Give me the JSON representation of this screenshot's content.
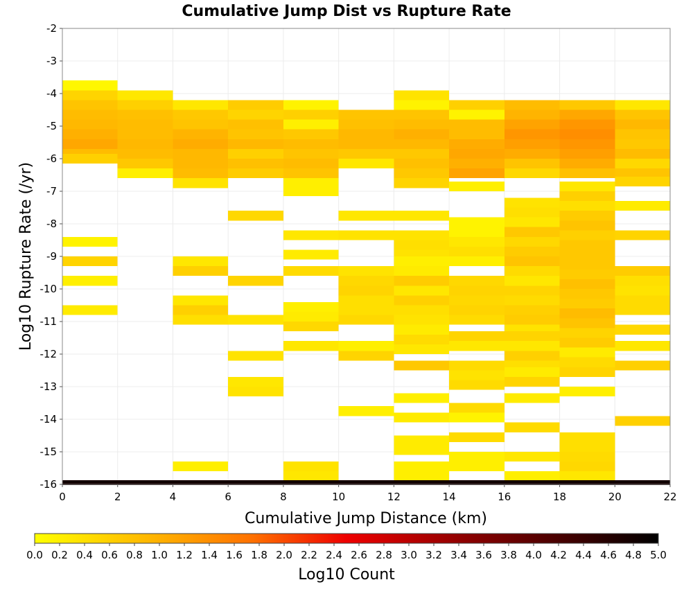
{
  "chart_data": {
    "type": "heatmap",
    "title": "Cumulative Jump Dist vs Rupture Rate",
    "xlabel": "Cumulative Jump Distance (km)",
    "ylabel": "Log10 Rupture Rate (/yr)",
    "xlim": [
      0,
      22
    ],
    "ylim": [
      -16,
      -2
    ],
    "x_ticks": [
      "0",
      "2",
      "4",
      "6",
      "8",
      "10",
      "12",
      "14",
      "16",
      "18",
      "20",
      "22"
    ],
    "y_ticks": [
      "-2",
      "-3",
      "-4",
      "-5",
      "-6",
      "-7",
      "-8",
      "-9",
      "-10",
      "-11",
      "-12",
      "-13",
      "-14",
      "-15",
      "-16"
    ],
    "x_bin_width": 2,
    "y_bin_height": 0.3,
    "grid": true,
    "colorbar": {
      "label": "Log10 Count",
      "min": 0.0,
      "max": 5.0,
      "ticks": [
        "0.0",
        "0.2",
        "0.4",
        "0.6",
        "0.8",
        "1.0",
        "1.2",
        "1.4",
        "1.6",
        "1.8",
        "2.0",
        "2.2",
        "2.4",
        "2.6",
        "2.8",
        "3.0",
        "3.2",
        "3.4",
        "3.6",
        "3.8",
        "4.0",
        "4.2",
        "4.4",
        "4.6",
        "4.8",
        "5.0"
      ],
      "colors": [
        "#ffff00",
        "#ff8000",
        "#ff0000",
        "#800000",
        "#000000"
      ]
    },
    "cells": [
      {
        "x": 0,
        "y": -3.75,
        "v": 0.1
      },
      {
        "x": 0,
        "y": -4.05,
        "v": 0.55
      },
      {
        "x": 0,
        "y": -4.35,
        "v": 0.75
      },
      {
        "x": 0,
        "y": -4.65,
        "v": 0.85
      },
      {
        "x": 0,
        "y": -4.95,
        "v": 0.9
      },
      {
        "x": 0,
        "y": -5.25,
        "v": 1.0
      },
      {
        "x": 0,
        "y": -5.55,
        "v": 1.1
      },
      {
        "x": 0,
        "y": -5.85,
        "v": 0.85
      },
      {
        "x": 0,
        "y": -6.0,
        "v": 0.6
      },
      {
        "x": 0,
        "y": -8.55,
        "v": 0.15
      },
      {
        "x": 0,
        "y": -9.15,
        "v": 0.55
      },
      {
        "x": 0,
        "y": -9.75,
        "v": 0.2
      },
      {
        "x": 0,
        "y": -10.65,
        "v": 0.25
      },
      {
        "x": 2,
        "y": -4.05,
        "v": 0.3
      },
      {
        "x": 2,
        "y": -4.35,
        "v": 0.6
      },
      {
        "x": 2,
        "y": -4.65,
        "v": 0.8
      },
      {
        "x": 2,
        "y": -4.95,
        "v": 0.85
      },
      {
        "x": 2,
        "y": -5.25,
        "v": 0.85
      },
      {
        "x": 2,
        "y": -5.55,
        "v": 0.9
      },
      {
        "x": 2,
        "y": -5.85,
        "v": 0.85
      },
      {
        "x": 2,
        "y": -6.15,
        "v": 0.7
      },
      {
        "x": 2,
        "y": -6.45,
        "v": 0.2
      },
      {
        "x": 4,
        "y": -4.35,
        "v": 0.3
      },
      {
        "x": 4,
        "y": -4.65,
        "v": 0.7
      },
      {
        "x": 4,
        "y": -4.95,
        "v": 0.75
      },
      {
        "x": 4,
        "y": -5.25,
        "v": 0.95
      },
      {
        "x": 4,
        "y": -5.55,
        "v": 1.05
      },
      {
        "x": 4,
        "y": -5.85,
        "v": 0.9
      },
      {
        "x": 4,
        "y": -6.15,
        "v": 0.9
      },
      {
        "x": 4,
        "y": -6.45,
        "v": 0.85
      },
      {
        "x": 4,
        "y": -6.75,
        "v": 0.35
      },
      {
        "x": 4,
        "y": -9.15,
        "v": 0.3
      },
      {
        "x": 4,
        "y": -9.45,
        "v": 0.6
      },
      {
        "x": 4,
        "y": -10.35,
        "v": 0.3
      },
      {
        "x": 4,
        "y": -10.65,
        "v": 0.6
      },
      {
        "x": 4,
        "y": -10.95,
        "v": 0.4
      },
      {
        "x": 4,
        "y": -15.45,
        "v": 0.2
      },
      {
        "x": 6,
        "y": -4.35,
        "v": 0.65
      },
      {
        "x": 6,
        "y": -4.65,
        "v": 0.55
      },
      {
        "x": 6,
        "y": -4.95,
        "v": 0.8
      },
      {
        "x": 6,
        "y": -5.25,
        "v": 0.75
      },
      {
        "x": 6,
        "y": -5.55,
        "v": 0.9
      },
      {
        "x": 6,
        "y": -5.85,
        "v": 0.6
      },
      {
        "x": 6,
        "y": -6.15,
        "v": 0.8
      },
      {
        "x": 6,
        "y": -6.45,
        "v": 0.65
      },
      {
        "x": 6,
        "y": -7.75,
        "v": 0.5
      },
      {
        "x": 6,
        "y": -9.75,
        "v": 0.55
      },
      {
        "x": 6,
        "y": -10.95,
        "v": 0.35
      },
      {
        "x": 6,
        "y": -12.05,
        "v": 0.35
      },
      {
        "x": 6,
        "y": -12.85,
        "v": 0.3
      },
      {
        "x": 6,
        "y": -13.15,
        "v": 0.35
      },
      {
        "x": 8,
        "y": -4.35,
        "v": 0.15
      },
      {
        "x": 8,
        "y": -4.65,
        "v": 0.6
      },
      {
        "x": 8,
        "y": -4.95,
        "v": 0.2
      },
      {
        "x": 8,
        "y": -5.25,
        "v": 0.7
      },
      {
        "x": 8,
        "y": -5.55,
        "v": 0.85
      },
      {
        "x": 8,
        "y": -5.85,
        "v": 0.75
      },
      {
        "x": 8,
        "y": -6.15,
        "v": 0.85
      },
      {
        "x": 8,
        "y": -6.45,
        "v": 0.75
      },
      {
        "x": 8,
        "y": -6.75,
        "v": 0.2
      },
      {
        "x": 8,
        "y": -7.0,
        "v": 0.2
      },
      {
        "x": 8,
        "y": -8.35,
        "v": 0.3
      },
      {
        "x": 8,
        "y": -8.95,
        "v": 0.25
      },
      {
        "x": 8,
        "y": -9.45,
        "v": 0.45
      },
      {
        "x": 8,
        "y": -10.55,
        "v": 0.2
      },
      {
        "x": 8,
        "y": -10.85,
        "v": 0.25
      },
      {
        "x": 8,
        "y": -11.15,
        "v": 0.5
      },
      {
        "x": 8,
        "y": -11.75,
        "v": 0.3
      },
      {
        "x": 8,
        "y": -15.45,
        "v": 0.35
      },
      {
        "x": 8,
        "y": -15.75,
        "v": 0.3
      },
      {
        "x": 10,
        "y": -4.65,
        "v": 0.75
      },
      {
        "x": 10,
        "y": -4.95,
        "v": 0.8
      },
      {
        "x": 10,
        "y": -5.25,
        "v": 0.9
      },
      {
        "x": 10,
        "y": -5.55,
        "v": 0.9
      },
      {
        "x": 10,
        "y": -5.85,
        "v": 0.7
      },
      {
        "x": 10,
        "y": -6.15,
        "v": 0.3
      },
      {
        "x": 10,
        "y": -7.75,
        "v": 0.3
      },
      {
        "x": 10,
        "y": -8.35,
        "v": 0.35
      },
      {
        "x": 10,
        "y": -9.45,
        "v": 0.35
      },
      {
        "x": 10,
        "y": -9.75,
        "v": 0.5
      },
      {
        "x": 10,
        "y": -10.05,
        "v": 0.55
      },
      {
        "x": 10,
        "y": -10.35,
        "v": 0.4
      },
      {
        "x": 10,
        "y": -10.65,
        "v": 0.4
      },
      {
        "x": 10,
        "y": -10.95,
        "v": 0.5
      },
      {
        "x": 10,
        "y": -11.75,
        "v": 0.2
      },
      {
        "x": 10,
        "y": -12.05,
        "v": 0.55
      },
      {
        "x": 10,
        "y": -13.75,
        "v": 0.2
      },
      {
        "x": 12,
        "y": -4.05,
        "v": 0.35
      },
      {
        "x": 12,
        "y": -4.35,
        "v": 0.15
      },
      {
        "x": 12,
        "y": -4.65,
        "v": 0.75
      },
      {
        "x": 12,
        "y": -4.95,
        "v": 0.85
      },
      {
        "x": 12,
        "y": -5.25,
        "v": 1.0
      },
      {
        "x": 12,
        "y": -5.55,
        "v": 0.9
      },
      {
        "x": 12,
        "y": -5.85,
        "v": 0.7
      },
      {
        "x": 12,
        "y": -6.15,
        "v": 0.8
      },
      {
        "x": 12,
        "y": -6.45,
        "v": 0.7
      },
      {
        "x": 12,
        "y": -6.75,
        "v": 0.55
      },
      {
        "x": 12,
        "y": -7.75,
        "v": 0.3
      },
      {
        "x": 12,
        "y": -8.35,
        "v": 0.35
      },
      {
        "x": 12,
        "y": -8.65,
        "v": 0.4
      },
      {
        "x": 12,
        "y": -8.95,
        "v": 0.35
      },
      {
        "x": 12,
        "y": -9.15,
        "v": 0.2
      },
      {
        "x": 12,
        "y": -9.45,
        "v": 0.25
      },
      {
        "x": 12,
        "y": -9.75,
        "v": 0.65
      },
      {
        "x": 12,
        "y": -10.05,
        "v": 0.3
      },
      {
        "x": 12,
        "y": -10.35,
        "v": 0.6
      },
      {
        "x": 12,
        "y": -10.65,
        "v": 0.4
      },
      {
        "x": 12,
        "y": -10.95,
        "v": 0.35
      },
      {
        "x": 12,
        "y": -11.25,
        "v": 0.25
      },
      {
        "x": 12,
        "y": -11.55,
        "v": 0.45
      },
      {
        "x": 12,
        "y": -11.85,
        "v": 0.3
      },
      {
        "x": 12,
        "y": -12.35,
        "v": 0.7
      },
      {
        "x": 12,
        "y": -13.35,
        "v": 0.2
      },
      {
        "x": 12,
        "y": -13.95,
        "v": 0.25
      },
      {
        "x": 12,
        "y": -14.65,
        "v": 0.25
      },
      {
        "x": 12,
        "y": -14.95,
        "v": 0.25
      },
      {
        "x": 12,
        "y": -15.45,
        "v": 0.2
      },
      {
        "x": 12,
        "y": -15.75,
        "v": 0.2
      },
      {
        "x": 14,
        "y": -4.35,
        "v": 0.6
      },
      {
        "x": 14,
        "y": -4.65,
        "v": 0.15
      },
      {
        "x": 14,
        "y": -4.95,
        "v": 0.85
      },
      {
        "x": 14,
        "y": -5.25,
        "v": 0.85
      },
      {
        "x": 14,
        "y": -5.55,
        "v": 1.05
      },
      {
        "x": 14,
        "y": -5.85,
        "v": 1.1
      },
      {
        "x": 14,
        "y": -6.15,
        "v": 1.0
      },
      {
        "x": 14,
        "y": -6.45,
        "v": 1.15
      },
      {
        "x": 14,
        "y": -6.85,
        "v": 0.2
      },
      {
        "x": 14,
        "y": -7.95,
        "v": 0.15
      },
      {
        "x": 14,
        "y": -8.25,
        "v": 0.15
      },
      {
        "x": 14,
        "y": -8.55,
        "v": 0.3
      },
      {
        "x": 14,
        "y": -8.85,
        "v": 0.4
      },
      {
        "x": 14,
        "y": -9.15,
        "v": 0.2
      },
      {
        "x": 14,
        "y": -9.75,
        "v": 0.5
      },
      {
        "x": 14,
        "y": -10.05,
        "v": 0.55
      },
      {
        "x": 14,
        "y": -10.35,
        "v": 0.5
      },
      {
        "x": 14,
        "y": -10.65,
        "v": 0.55
      },
      {
        "x": 14,
        "y": -10.95,
        "v": 0.45
      },
      {
        "x": 14,
        "y": -11.45,
        "v": 0.55
      },
      {
        "x": 14,
        "y": -11.75,
        "v": 0.3
      },
      {
        "x": 14,
        "y": -12.35,
        "v": 0.45
      },
      {
        "x": 14,
        "y": -12.65,
        "v": 0.35
      },
      {
        "x": 14,
        "y": -12.95,
        "v": 0.45
      },
      {
        "x": 14,
        "y": -13.65,
        "v": 0.45
      },
      {
        "x": 14,
        "y": -13.95,
        "v": 0.15
      },
      {
        "x": 14,
        "y": -14.55,
        "v": 0.45
      },
      {
        "x": 14,
        "y": -15.15,
        "v": 0.2
      },
      {
        "x": 14,
        "y": -15.45,
        "v": 0.2
      },
      {
        "x": 16,
        "y": -4.35,
        "v": 0.85
      },
      {
        "x": 16,
        "y": -4.65,
        "v": 0.95
      },
      {
        "x": 16,
        "y": -4.95,
        "v": 1.15
      },
      {
        "x": 16,
        "y": -5.25,
        "v": 1.3
      },
      {
        "x": 16,
        "y": -5.55,
        "v": 1.2
      },
      {
        "x": 16,
        "y": -5.85,
        "v": 1.05
      },
      {
        "x": 16,
        "y": -6.15,
        "v": 0.75
      },
      {
        "x": 16,
        "y": -6.45,
        "v": 0.5
      },
      {
        "x": 16,
        "y": -7.35,
        "v": 0.35
      },
      {
        "x": 16,
        "y": -7.65,
        "v": 0.4
      },
      {
        "x": 16,
        "y": -7.95,
        "v": 0.3
      },
      {
        "x": 16,
        "y": -8.25,
        "v": 0.7
      },
      {
        "x": 16,
        "y": -8.55,
        "v": 0.5
      },
      {
        "x": 16,
        "y": -8.85,
        "v": 0.65
      },
      {
        "x": 16,
        "y": -9.15,
        "v": 0.75
      },
      {
        "x": 16,
        "y": -9.45,
        "v": 0.45
      },
      {
        "x": 16,
        "y": -9.75,
        "v": 0.3
      },
      {
        "x": 16,
        "y": -10.05,
        "v": 0.55
      },
      {
        "x": 16,
        "y": -10.35,
        "v": 0.45
      },
      {
        "x": 16,
        "y": -10.65,
        "v": 0.6
      },
      {
        "x": 16,
        "y": -10.95,
        "v": 0.65
      },
      {
        "x": 16,
        "y": -11.25,
        "v": 0.35
      },
      {
        "x": 16,
        "y": -11.45,
        "v": 0.55
      },
      {
        "x": 16,
        "y": -11.75,
        "v": 0.3
      },
      {
        "x": 16,
        "y": -12.05,
        "v": 0.6
      },
      {
        "x": 16,
        "y": -12.35,
        "v": 0.4
      },
      {
        "x": 16,
        "y": -12.55,
        "v": 0.25
      },
      {
        "x": 16,
        "y": -12.85,
        "v": 0.55
      },
      {
        "x": 16,
        "y": -13.35,
        "v": 0.25
      },
      {
        "x": 16,
        "y": -14.25,
        "v": 0.45
      },
      {
        "x": 16,
        "y": -15.15,
        "v": 0.3
      },
      {
        "x": 16,
        "y": -15.75,
        "v": 0.2
      },
      {
        "x": 18,
        "y": -4.35,
        "v": 0.7
      },
      {
        "x": 18,
        "y": -4.65,
        "v": 1.1
      },
      {
        "x": 18,
        "y": -4.95,
        "v": 1.3
      },
      {
        "x": 18,
        "y": -5.25,
        "v": 1.4
      },
      {
        "x": 18,
        "y": -5.55,
        "v": 1.3
      },
      {
        "x": 18,
        "y": -5.85,
        "v": 1.2
      },
      {
        "x": 18,
        "y": -6.15,
        "v": 1.05
      },
      {
        "x": 18,
        "y": -6.45,
        "v": 0.8
      },
      {
        "x": 18,
        "y": -6.85,
        "v": 0.3
      },
      {
        "x": 18,
        "y": -7.15,
        "v": 0.6
      },
      {
        "x": 18,
        "y": -7.45,
        "v": 0.4
      },
      {
        "x": 18,
        "y": -7.75,
        "v": 0.65
      },
      {
        "x": 18,
        "y": -8.05,
        "v": 0.75
      },
      {
        "x": 18,
        "y": -8.35,
        "v": 0.6
      },
      {
        "x": 18,
        "y": -8.65,
        "v": 0.7
      },
      {
        "x": 18,
        "y": -8.95,
        "v": 0.7
      },
      {
        "x": 18,
        "y": -9.25,
        "v": 0.7
      },
      {
        "x": 18,
        "y": -9.55,
        "v": 0.65
      },
      {
        "x": 18,
        "y": -9.85,
        "v": 0.8
      },
      {
        "x": 18,
        "y": -10.15,
        "v": 0.7
      },
      {
        "x": 18,
        "y": -10.45,
        "v": 0.65
      },
      {
        "x": 18,
        "y": -10.75,
        "v": 0.85
      },
      {
        "x": 18,
        "y": -11.05,
        "v": 0.75
      },
      {
        "x": 18,
        "y": -11.35,
        "v": 0.55
      },
      {
        "x": 18,
        "y": -11.65,
        "v": 0.65
      },
      {
        "x": 18,
        "y": -11.95,
        "v": 0.25
      },
      {
        "x": 18,
        "y": -12.25,
        "v": 0.45
      },
      {
        "x": 18,
        "y": -12.55,
        "v": 0.55
      },
      {
        "x": 18,
        "y": -13.15,
        "v": 0.2
      },
      {
        "x": 18,
        "y": -14.55,
        "v": 0.4
      },
      {
        "x": 18,
        "y": -14.85,
        "v": 0.4
      },
      {
        "x": 18,
        "y": -15.15,
        "v": 0.45
      },
      {
        "x": 18,
        "y": -15.45,
        "v": 0.5
      },
      {
        "x": 18,
        "y": -15.75,
        "v": 0.3
      },
      {
        "x": 20,
        "y": -4.35,
        "v": 0.3
      },
      {
        "x": 20,
        "y": -4.65,
        "v": 0.75
      },
      {
        "x": 20,
        "y": -4.95,
        "v": 0.9
      },
      {
        "x": 20,
        "y": -5.25,
        "v": 0.75
      },
      {
        "x": 20,
        "y": -5.55,
        "v": 0.7
      },
      {
        "x": 20,
        "y": -5.85,
        "v": 0.85
      },
      {
        "x": 20,
        "y": -6.15,
        "v": 0.5
      },
      {
        "x": 20,
        "y": -6.45,
        "v": 0.75
      },
      {
        "x": 20,
        "y": -6.7,
        "v": 0.55
      },
      {
        "x": 20,
        "y": -7.45,
        "v": 0.25
      },
      {
        "x": 20,
        "y": -8.35,
        "v": 0.55
      },
      {
        "x": 20,
        "y": -9.45,
        "v": 0.65
      },
      {
        "x": 20,
        "y": -9.75,
        "v": 0.4
      },
      {
        "x": 20,
        "y": -10.05,
        "v": 0.35
      },
      {
        "x": 20,
        "y": -10.35,
        "v": 0.45
      },
      {
        "x": 20,
        "y": -10.65,
        "v": 0.45
      },
      {
        "x": 20,
        "y": -11.25,
        "v": 0.5
      },
      {
        "x": 20,
        "y": -11.75,
        "v": 0.3
      },
      {
        "x": 20,
        "y": -12.35,
        "v": 0.6
      },
      {
        "x": 20,
        "y": -14.05,
        "v": 0.6
      },
      {
        "x": 0,
        "y": -15.95,
        "v": 4.8,
        "h": 0.15
      },
      {
        "x": 2,
        "y": -15.95,
        "v": 4.8,
        "h": 0.15
      },
      {
        "x": 4,
        "y": -15.95,
        "v": 4.8,
        "h": 0.15
      },
      {
        "x": 6,
        "y": -15.95,
        "v": 4.8,
        "h": 0.15
      },
      {
        "x": 8,
        "y": -15.95,
        "v": 4.8,
        "h": 0.15
      },
      {
        "x": 10,
        "y": -15.95,
        "v": 4.8,
        "h": 0.15
      },
      {
        "x": 12,
        "y": -15.95,
        "v": 4.8,
        "h": 0.15
      },
      {
        "x": 14,
        "y": -15.95,
        "v": 4.8,
        "h": 0.15
      },
      {
        "x": 16,
        "y": -15.95,
        "v": 4.8,
        "h": 0.15
      },
      {
        "x": 18,
        "y": -15.95,
        "v": 4.8,
        "h": 0.15
      },
      {
        "x": 20,
        "y": -15.95,
        "v": 4.8,
        "h": 0.15
      }
    ]
  }
}
